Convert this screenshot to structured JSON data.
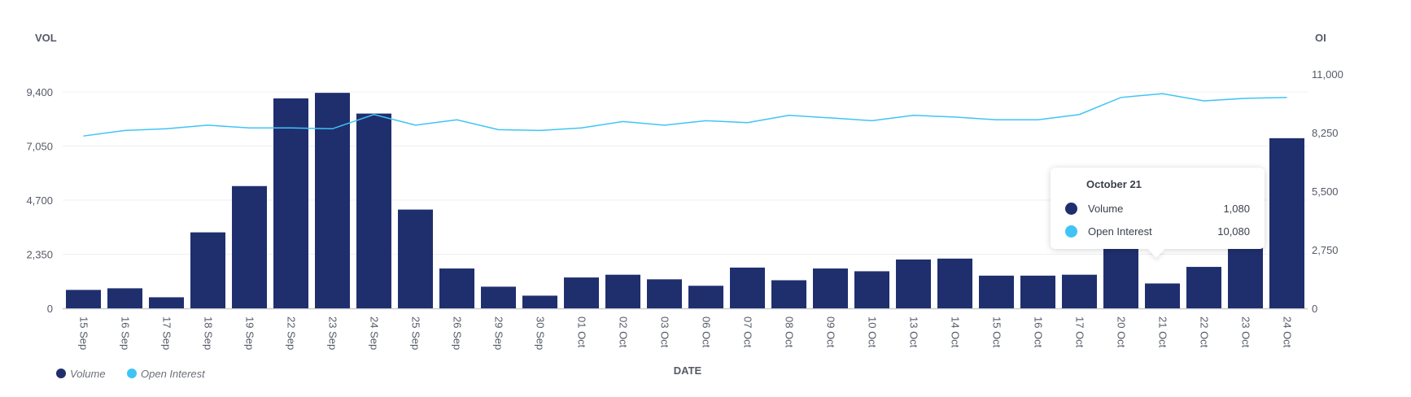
{
  "chart_data": {
    "type": "bar",
    "title": "",
    "xlabel": "DATE",
    "ylabel": "VOL",
    "y2label": "OI",
    "ylim": [
      0,
      9400
    ],
    "y2lim": [
      0,
      11000
    ],
    "yticks": [
      "0",
      "2,350",
      "4,700",
      "7,050",
      "9,400"
    ],
    "y2ticks": [
      "0",
      "2,750",
      "5,500",
      "8,250",
      "11,000"
    ],
    "grid": true,
    "legend_position": "bottom-left",
    "categories": [
      "15 Sep",
      "16 Sep",
      "17 Sep",
      "18 Sep",
      "19 Sep",
      "22 Sep",
      "23 Sep",
      "24 Sep",
      "25 Sep",
      "26 Sep",
      "29 Sep",
      "30 Sep",
      "01 Oct",
      "02 Oct",
      "03 Oct",
      "06 Oct",
      "07 Oct",
      "08 Oct",
      "09 Oct",
      "10 Oct",
      "13 Oct",
      "14 Oct",
      "15 Oct",
      "16 Oct",
      "17 Oct",
      "20 Oct",
      "21 Oct",
      "22 Oct",
      "23 Oct",
      "24 Oct"
    ],
    "series": [
      {
        "name": "Volume",
        "type": "bar",
        "axis": "left",
        "color": "#1f2f6e",
        "values": [
          800,
          870,
          480,
          3300,
          5310,
          9120,
          9360,
          8460,
          4290,
          1730,
          940,
          550,
          1340,
          1460,
          1260,
          980,
          1770,
          1220,
          1730,
          1610,
          2120,
          2160,
          1420,
          1420,
          1460,
          3000,
          1080,
          1800,
          2900,
          7390
        ]
      },
      {
        "name": "Open Interest",
        "type": "line",
        "axis": "right",
        "color": "#40c4f5",
        "values": [
          8090,
          8350,
          8430,
          8600,
          8470,
          8470,
          8430,
          9100,
          8600,
          8850,
          8390,
          8350,
          8470,
          8770,
          8600,
          8810,
          8720,
          9060,
          8940,
          8810,
          9060,
          8980,
          8850,
          8850,
          9100,
          9900,
          10080,
          9740,
          9860,
          9900
        ]
      }
    ]
  },
  "tooltip": {
    "date": "October 21",
    "rows": [
      {
        "label": "Volume",
        "value": "1,080",
        "color": "#1f2f6e"
      },
      {
        "label": "Open Interest",
        "value": "10,080",
        "color": "#40c4f5"
      }
    ]
  }
}
